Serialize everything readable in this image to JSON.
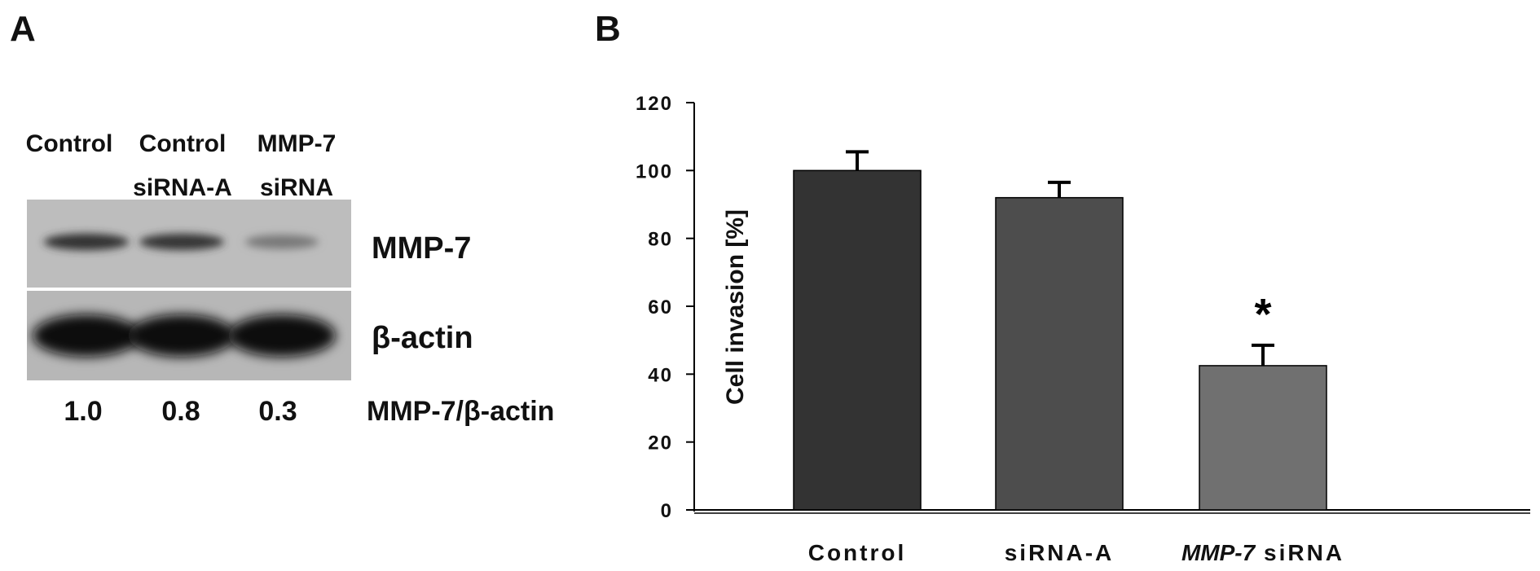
{
  "panel_a": {
    "letter": "A",
    "lanes": [
      {
        "line1": "Control",
        "line2": ""
      },
      {
        "line1": "Control",
        "line2": "siRNA-A"
      },
      {
        "line1": "MMP-7",
        "line2": "siRNA"
      }
    ],
    "blots": [
      {
        "label": "MMP-7",
        "band_intensity": [
          0.8,
          0.78,
          0.42
        ]
      },
      {
        "label": "β-actin",
        "band_intensity": [
          1.0,
          1.0,
          1.0
        ]
      }
    ],
    "ratio_values": [
      "1.0",
      "0.8",
      "0.3"
    ],
    "ratio_label": "MMP-7/β-actin"
  },
  "panel_b": {
    "letter": "B"
  },
  "chart_data": {
    "type": "bar",
    "categories": [
      "Control",
      "siRNA-A",
      "MMP-7 siRNA"
    ],
    "category_italic_part": [
      "",
      "",
      "MMP-7"
    ],
    "category_plain_part": [
      "Control",
      "siRNA-A",
      " siRNA"
    ],
    "values": [
      100,
      92,
      42.5
    ],
    "errors": [
      5.5,
      4.5,
      6.0
    ],
    "bar_colors": [
      "#333333",
      "#4d4d4d",
      "#707070"
    ],
    "annotations": [
      "",
      "",
      "*"
    ],
    "ylabel": "Cell invasion [%]",
    "xlabel": "",
    "ylim": [
      0,
      120
    ],
    "yticks": [
      0,
      20,
      40,
      60,
      80,
      100,
      120
    ],
    "grid": false
  }
}
